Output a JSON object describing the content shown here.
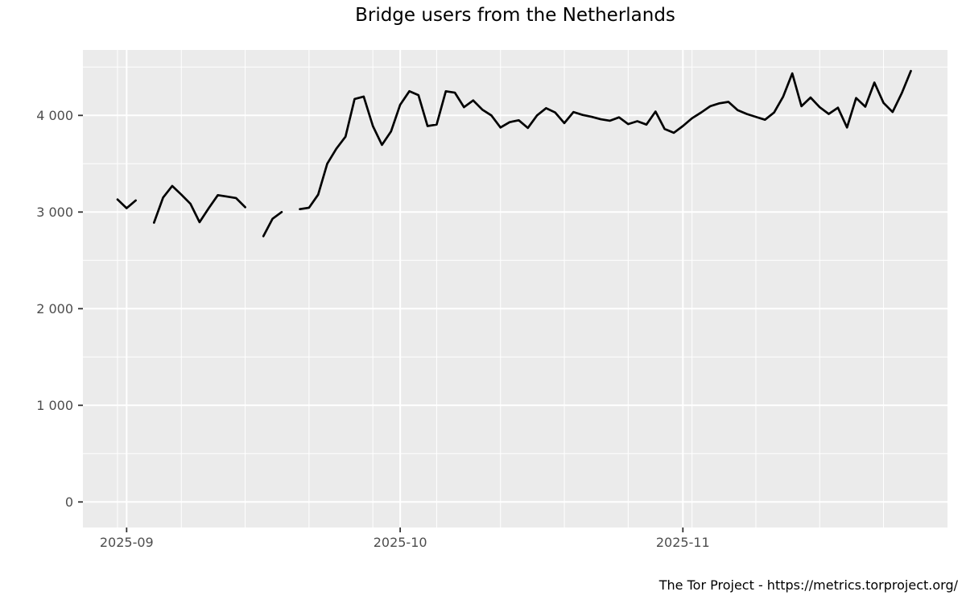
{
  "chart_data": {
    "type": "line",
    "title": "Bridge users from the Netherlands",
    "source": "The Tor Project - https://metrics.torproject.org/",
    "legend": "none",
    "series": [
      {
        "name": "bridge-users-netherlands",
        "frequency": "daily",
        "start_date": "2025-08-31",
        "end_date": "2025-11-26",
        "values": [
          3130,
          3040,
          3120,
          null,
          2890,
          3150,
          3270,
          3180,
          3085,
          2895,
          3040,
          3175,
          3160,
          3145,
          3050,
          null,
          2750,
          2930,
          3000,
          null,
          3030,
          3045,
          3180,
          3500,
          3655,
          3780,
          4170,
          4195,
          3890,
          3695,
          3835,
          4110,
          4250,
          4210,
          3890,
          3905,
          4250,
          4235,
          4085,
          4155,
          4060,
          4000,
          3875,
          3930,
          3950,
          3870,
          4000,
          4075,
          4030,
          3920,
          4035,
          4005,
          3985,
          3960,
          3945,
          3980,
          3910,
          3940,
          3905,
          4040,
          3860,
          3820,
          3890,
          3970,
          4030,
          4095,
          4125,
          4140,
          4055,
          4015,
          3985,
          3955,
          4030,
          4195,
          4435,
          4095,
          4185,
          4085,
          4015,
          4080,
          3875,
          4180,
          4090,
          4340,
          4130,
          4035,
          4230,
          4460
        ]
      }
    ],
    "missing_dates": [
      "2025-09-03",
      "2025-09-15",
      "2025-09-19"
    ],
    "x_axis": {
      "ticks": [
        {
          "label": "2025-09",
          "date": "2025-09-01"
        },
        {
          "label": "2025-10",
          "date": "2025-10-01"
        },
        {
          "label": "2025-11",
          "date": "2025-11-01"
        }
      ],
      "minor_gridlines": "weekly (Sundays), 2025-08-31 through 2025-11-30"
    },
    "y_axis": {
      "ticks": [
        {
          "label": "0",
          "value": 0
        },
        {
          "label": "1 000",
          "value": 1000
        },
        {
          "label": "2 000",
          "value": 2000
        },
        {
          "label": "3 000",
          "value": 3000
        },
        {
          "label": "4 000",
          "value": 4000
        }
      ],
      "minor_gridline_values": [
        500,
        1500,
        2500,
        3500,
        4500
      ],
      "range_shown": [
        -260,
        4680
      ]
    },
    "grid": "on",
    "colors": {
      "line": "#000000",
      "panel_background": "#EBEBEB",
      "gridline": "#FFFFFF",
      "tick_label": "#4D4D4D",
      "tick_mark": "#333333",
      "title": "#000000",
      "page_background": "#FFFFFF"
    }
  }
}
